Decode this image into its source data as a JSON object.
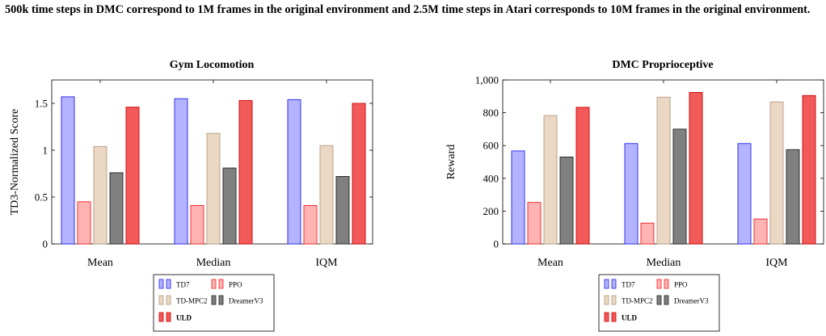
{
  "caption": "500k time steps in DMC correspond to 1M frames in the original environment and 2.5M time steps in Atari corresponds to 10M frames in the original environment.",
  "series_colors": {
    "TD7": {
      "fill": "#b3b3ff",
      "stroke": "#2222ee"
    },
    "PPO": {
      "fill": "#ffb3b3",
      "stroke": "#ee2222"
    },
    "TD-MPC2": {
      "fill": "#ead8c4",
      "stroke": "#b59a80"
    },
    "DreamerV3": {
      "fill": "#808080",
      "stroke": "#222222"
    },
    "ULD": {
      "fill": "#f25a5a",
      "stroke": "#cc0000"
    }
  },
  "chart_data": [
    {
      "type": "bar",
      "title": "Gym Locomotion",
      "xlabel": "",
      "ylabel": "TD3-Normalized Score",
      "categories": [
        "Mean",
        "Median",
        "IQM"
      ],
      "ylim": [
        0,
        1.75
      ],
      "yticks": [
        0,
        0.5,
        1,
        1.5
      ],
      "ytick_labels": [
        "0",
        "0.5",
        "1",
        "1.5"
      ],
      "grid": false,
      "legend_position": "bottom-center",
      "series": [
        {
          "name": "TD7",
          "values": [
            1.57,
            1.55,
            1.54
          ]
        },
        {
          "name": "PPO",
          "values": [
            0.45,
            0.41,
            0.41
          ]
        },
        {
          "name": "TD-MPC2",
          "values": [
            1.04,
            1.18,
            1.05
          ]
        },
        {
          "name": "DreamerV3",
          "values": [
            0.76,
            0.81,
            0.72
          ]
        },
        {
          "name": "ULD",
          "values": [
            1.46,
            1.53,
            1.5
          ]
        }
      ]
    },
    {
      "type": "bar",
      "title": "DMC Proprioceptive",
      "xlabel": "",
      "ylabel": "Reward",
      "categories": [
        "Mean",
        "Median",
        "IQM"
      ],
      "ylim": [
        0,
        1000
      ],
      "yticks": [
        0,
        200,
        400,
        600,
        800,
        1000
      ],
      "ytick_labels": [
        "0",
        "200",
        "400",
        "600",
        "800",
        "1,000"
      ],
      "grid": false,
      "legend_position": "bottom-center",
      "series": [
        {
          "name": "TD7",
          "values": [
            567,
            612,
            612
          ]
        },
        {
          "name": "PPO",
          "values": [
            253,
            127,
            152
          ]
        },
        {
          "name": "TD-MPC2",
          "values": [
            783,
            895,
            866
          ]
        },
        {
          "name": "DreamerV3",
          "values": [
            530,
            700,
            575
          ]
        },
        {
          "name": "ULD",
          "values": [
            833,
            924,
            905
          ]
        }
      ]
    }
  ]
}
